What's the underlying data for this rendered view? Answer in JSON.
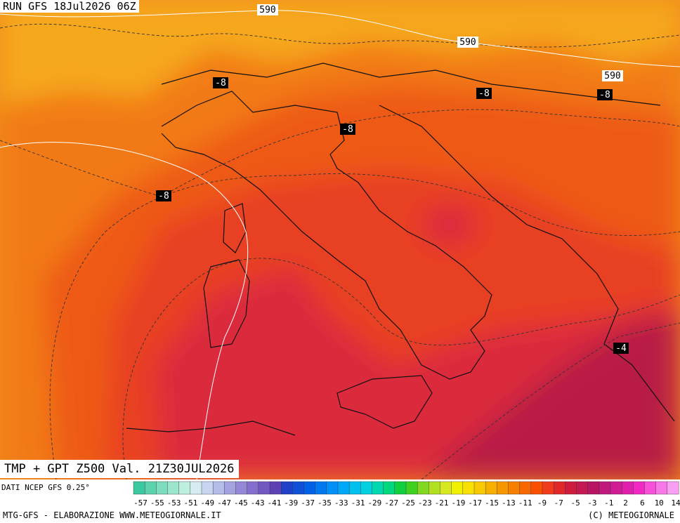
{
  "header": {
    "run": "RUN GFS 18Jul2026 06Z"
  },
  "title": {
    "valid": "TMP + GPT Z500 Val. 21Z30JUL2026"
  },
  "source": "DATI NCEP GFS 0.25°",
  "footer": {
    "left": "MTG-GFS - ELABORAZIONE WWW.METEOGIORNALE.IT",
    "right": "(C) METEOGIORNALE"
  },
  "isolines": {
    "geopotential": [
      "590",
      "590",
      "590"
    ],
    "temperature": [
      "-8",
      "-8",
      "-8",
      "-8",
      "-8",
      "-8",
      "-4"
    ]
  },
  "legend": {
    "ticks": [
      "-57",
      "-55",
      "-53",
      "-51",
      "-49",
      "-47",
      "-45",
      "-43",
      "-41",
      "-39",
      "-37",
      "-35",
      "-33",
      "-31",
      "-29",
      "-27",
      "-25",
      "-23",
      "-21",
      "-19",
      "-17",
      "-15",
      "-13",
      "-11",
      "-9",
      "-7",
      "-5",
      "-3",
      "-1",
      "2",
      "6",
      "10",
      "14"
    ],
    "colors": [
      "#3cc8a0",
      "#5cd2ae",
      "#7cdcbe",
      "#9ce6ce",
      "#bcefde",
      "#d6ecf0",
      "#c8d4f0",
      "#b4bcea",
      "#a4a2e0",
      "#9488d6",
      "#8470cc",
      "#7058c0",
      "#5c40b4",
      "#2040c8",
      "#1050d8",
      "#0060e8",
      "#0078f0",
      "#0090f8",
      "#00a8f8",
      "#00c0f0",
      "#00d0e0",
      "#00d8b0",
      "#00d880",
      "#10d040",
      "#40d020",
      "#80d820",
      "#b0e020",
      "#d8e820",
      "#f0f000",
      "#f8e000",
      "#f8c800",
      "#f8b000",
      "#f89800",
      "#f88000",
      "#f86800",
      "#f85000",
      "#f03c1c",
      "#e02828",
      "#d01c3c",
      "#c41850",
      "#b81464",
      "#c0187c",
      "#d01c94",
      "#e020ac",
      "#f028c4",
      "#f850d8",
      "#f878e8",
      "#f8a0f4"
    ]
  }
}
